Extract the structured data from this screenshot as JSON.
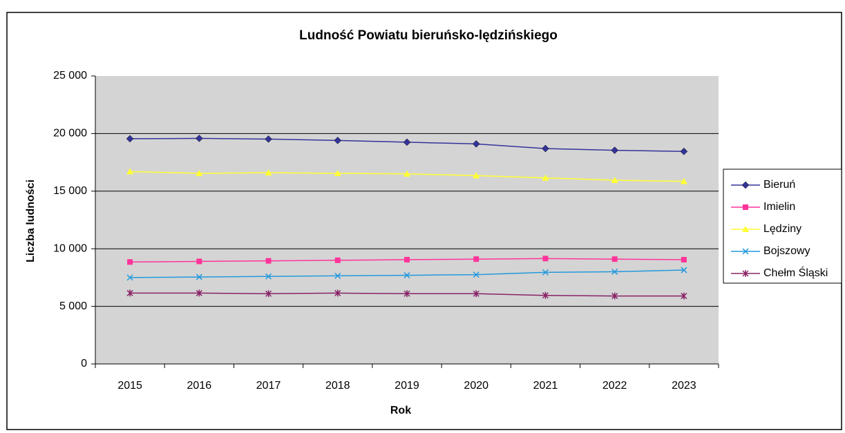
{
  "chart_data": {
    "type": "line",
    "title": "Ludność Powiatu bieruńsko-lędzińskiego",
    "x_label": "Rok",
    "y_label": "Liczba ludności",
    "categories": [
      "2015",
      "2016",
      "2017",
      "2018",
      "2019",
      "2020",
      "2021",
      "2022",
      "2023"
    ],
    "series": [
      {
        "name": "Bieruń",
        "color": "#333399",
        "marker": "diamond",
        "values": [
          19550,
          19580,
          19520,
          19400,
          19250,
          19100,
          18700,
          18550,
          18450
        ]
      },
      {
        "name": "Imielin",
        "color": "#ff3399",
        "marker": "square",
        "values": [
          8850,
          8900,
          8950,
          9000,
          9050,
          9100,
          9150,
          9100,
          9050
        ]
      },
      {
        "name": "Lędziny",
        "color": "#ffff33",
        "marker": "triangle",
        "values": [
          16700,
          16550,
          16600,
          16550,
          16500,
          16350,
          16150,
          15950,
          15850
        ]
      },
      {
        "name": "Bojszowy",
        "color": "#2299dd",
        "marker": "x",
        "values": [
          7500,
          7550,
          7600,
          7650,
          7700,
          7750,
          7950,
          8000,
          8150
        ]
      },
      {
        "name": "Chełm Śląski",
        "color": "#882266",
        "marker": "star",
        "values": [
          6150,
          6150,
          6100,
          6150,
          6100,
          6100,
          5950,
          5900,
          5900
        ]
      }
    ],
    "ylim": [
      0,
      25000
    ],
    "yticks": [
      0,
      {
        "value": 5000,
        "label": "5 000"
      },
      {
        "value": 10000,
        "label": "10 000"
      },
      {
        "value": 15000,
        "label": "15 000"
      },
      {
        "value": 20000,
        "label": "20 000"
      },
      {
        "value": 25000,
        "label": "25 000"
      }
    ],
    "grid": true,
    "legend": "right"
  }
}
